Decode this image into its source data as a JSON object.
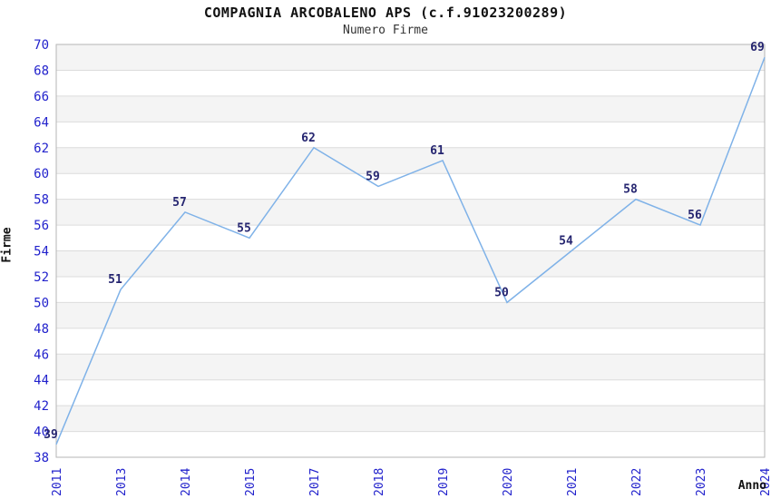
{
  "chart_data": {
    "type": "line",
    "title": "COMPAGNIA ARCOBALENO APS (c.f.91023200289)",
    "subtitle": "Numero Firme",
    "xlabel": "Anno",
    "ylabel": "Firme",
    "categories": [
      "2011",
      "2013",
      "2014",
      "2015",
      "2017",
      "2018",
      "2019",
      "2020",
      "2021",
      "2022",
      "2023",
      "2024"
    ],
    "values": [
      39,
      51,
      57,
      55,
      62,
      59,
      61,
      50,
      54,
      58,
      56,
      69
    ],
    "ylim": [
      38,
      70
    ],
    "ytick_step": 2,
    "grid": true,
    "banded_background": true,
    "legend": "none",
    "colors": {
      "line": "#7fb2e8",
      "point_label": "#252570",
      "axis_tick_label": "#2222cc",
      "title": "#111111",
      "subtitle": "#333333",
      "band": "#f4f4f4",
      "gridline": "#dcdcdc",
      "plot_border": "#b5b5b5",
      "background": "#ffffff"
    }
  }
}
